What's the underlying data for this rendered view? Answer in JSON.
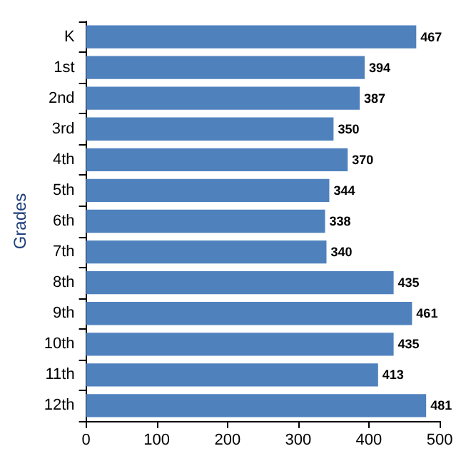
{
  "chart_data": {
    "type": "bar",
    "orientation": "horizontal",
    "ylabel": "Grades",
    "categories": [
      "K",
      "1st",
      "2nd",
      "3rd",
      "4th",
      "5th",
      "6th",
      "7th",
      "8th",
      "9th",
      "10th",
      "11th",
      "12th"
    ],
    "values": [
      467,
      394,
      387,
      350,
      370,
      344,
      338,
      340,
      435,
      461,
      435,
      413,
      481
    ],
    "color": "#4f81bd",
    "xlim": [
      0,
      500
    ],
    "xticks": [
      0,
      100,
      200,
      300,
      400,
      500
    ],
    "data_labels": true,
    "grid": false
  }
}
